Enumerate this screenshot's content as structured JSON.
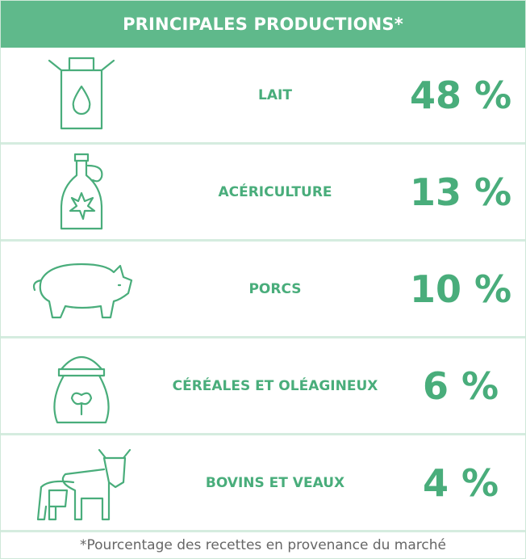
{
  "header": {
    "title": "PRINCIPALES PRODUCTIONS*"
  },
  "rows": [
    {
      "label": "LAIT",
      "value": "48 %"
    },
    {
      "label": "ACÉRICULTURE",
      "value": "13 %"
    },
    {
      "label": "PORCS",
      "value": "10 %"
    },
    {
      "label": "CÉRÉALES ET OLÉAGINEUX",
      "value": "6 %"
    },
    {
      "label": "BOVINS ET VEAUX",
      "value": "4 %"
    }
  ],
  "footnote": "*Pourcentage des recettes en provenance du marché"
}
